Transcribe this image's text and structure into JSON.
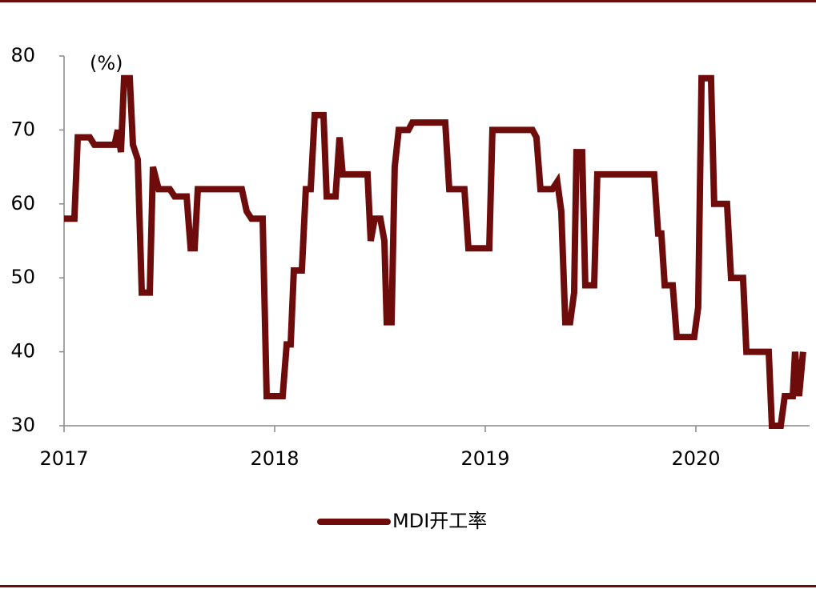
{
  "chart_data": {
    "type": "line",
    "annotation": "(%)",
    "x": [
      2017.0,
      2017.049,
      2017.065,
      2017.122,
      2017.144,
      2017.24,
      2017.255,
      2017.27,
      2017.285,
      2017.312,
      2017.327,
      2017.35,
      2017.369,
      2017.407,
      2017.422,
      2017.449,
      2017.502,
      2017.525,
      2017.582,
      2017.601,
      2017.62,
      2017.635,
      2017.844,
      2017.867,
      2017.89,
      2017.943,
      2017.962,
      2018.038,
      2018.057,
      2018.076,
      2018.091,
      2018.129,
      2018.148,
      2018.171,
      2018.19,
      2018.232,
      2018.247,
      2018.289,
      2018.308,
      2018.323,
      2018.441,
      2018.456,
      2018.475,
      2018.502,
      2018.521,
      2018.532,
      2018.555,
      2018.57,
      2018.589,
      2018.635,
      2018.654,
      2018.81,
      2018.829,
      2018.901,
      2018.92,
      2019.019,
      2019.034,
      2019.224,
      2019.243,
      2019.262,
      2019.319,
      2019.342,
      2019.361,
      2019.38,
      2019.403,
      2019.422,
      2019.433,
      2019.46,
      2019.475,
      2019.517,
      2019.532,
      2019.802,
      2019.821,
      2019.836,
      2019.852,
      2019.89,
      2019.909,
      2019.992,
      2020.011,
      2020.027,
      2020.072,
      2020.087,
      2020.148,
      2020.167,
      2020.224,
      2020.24,
      2020.346,
      2020.361,
      2020.403,
      2020.422,
      2020.46,
      2020.471,
      2020.49,
      2020.509
    ],
    "series": [
      {
        "name": "MDI开工率",
        "color": "#6e0b0b",
        "values": [
          58,
          58,
          69,
          69,
          68,
          68,
          70,
          67,
          77,
          77,
          68,
          66,
          48,
          48,
          65,
          62,
          62,
          61,
          61,
          54,
          54,
          62,
          62,
          59,
          58,
          58,
          34,
          34,
          41,
          41,
          51,
          51,
          62,
          62,
          72,
          72,
          61,
          61,
          69,
          64,
          64,
          55,
          58,
          58,
          55,
          44,
          44,
          65,
          70,
          70,
          71,
          71,
          62,
          62,
          54,
          54,
          70,
          70,
          69,
          62,
          62,
          63,
          59,
          44,
          44,
          48,
          67,
          67,
          49,
          49,
          64,
          64,
          56,
          56,
          49,
          49,
          42,
          42,
          46,
          77,
          77,
          60,
          60,
          50,
          50,
          40,
          40,
          30,
          30,
          34,
          34,
          40,
          34,
          40
        ]
      }
    ],
    "xlim": [
      2017,
      2020.54
    ],
    "xticks": [
      2017,
      2018,
      2019,
      2020
    ],
    "ylim": [
      30,
      80
    ],
    "yticks": [
      30,
      40,
      50,
      60,
      70,
      80
    ],
    "legend": "bottom",
    "grid": false
  }
}
